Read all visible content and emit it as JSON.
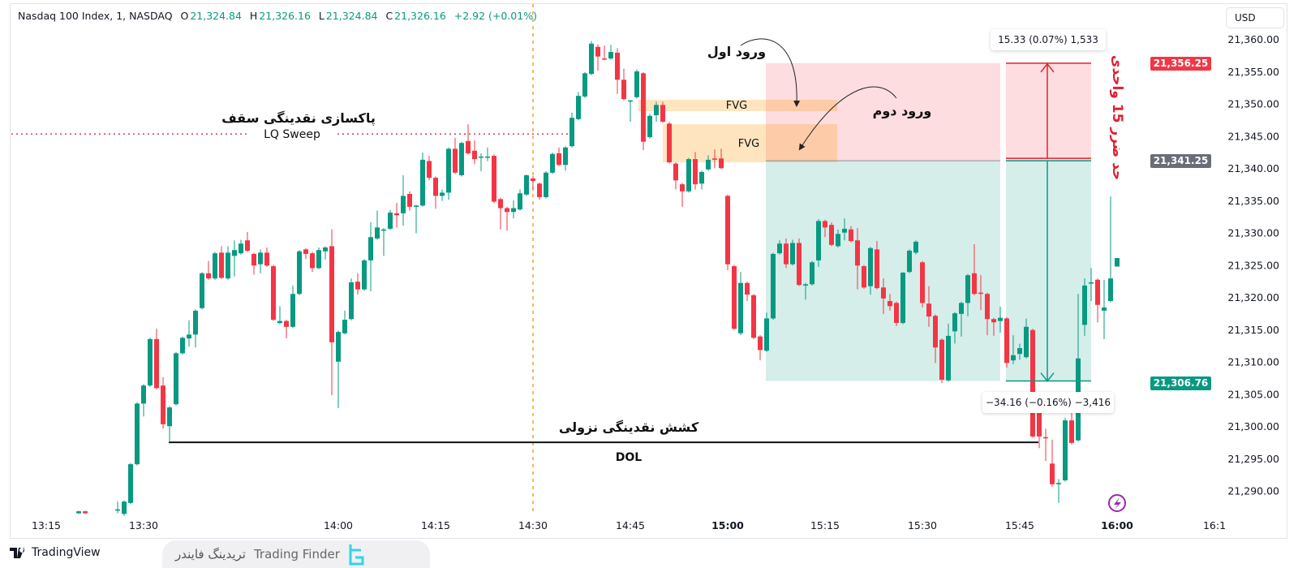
{
  "header": {
    "symbol": "Nasdaq 100 Index, 1, NASDAQ",
    "o_label": "O",
    "o": "21,324.84",
    "h_label": "H",
    "h": "21,326.16",
    "l_label": "L",
    "l": "21,324.84",
    "c_label": "C",
    "c": "21,326.16",
    "change": "+2.92 (+0.01%)"
  },
  "currency": "USD",
  "price_labels": {
    "stop": {
      "text": "21,356.25",
      "value": 21356.25,
      "color": "#f23645"
    },
    "entry": {
      "text": "21,341.25",
      "value": 21341.25,
      "color": "#6a6d78"
    },
    "last": {
      "text": "21,306.76",
      "value": 21306.76,
      "color": "#089981"
    }
  },
  "tooltips": {
    "risk": "15.33 (0.07%) 1,533",
    "reward": "−34.16 (−0.16%) −3,416"
  },
  "annotations": {
    "lq_title": "پاکسازی نقدینگی سقف",
    "lq_label": "LQ Sweep",
    "lq_price": 21345.4,
    "dol_title": "کشش نقدینگی نزولی",
    "dol_label": "DOL",
    "dol_price": 21297.6,
    "fvg1": "FVG",
    "fvg2": "FVG",
    "entry1": "ورود اول",
    "entry2": "ورود دوم",
    "stop_text": "حد ضرر 15 واحدی",
    "zone_stop": 21356.25,
    "zone_entry": 21341.25,
    "zone_target": 21307.1
  },
  "branding": {
    "tradingview": "TradingView",
    "finder_fa": "تریدینگ فایندر",
    "finder_en": "Trading Finder"
  },
  "colors": {
    "up": "#089981",
    "down": "#f23645",
    "accent": "#9c27b0"
  },
  "chart_data": {
    "type": "candlestick",
    "title": "Nasdaq 100 Index, 1, NASDAQ",
    "interval_minutes": 1,
    "start_time": "13:20",
    "ylim": [
      21283,
      21366
    ],
    "y_ticks": [
      21360,
      21355,
      21350,
      21345,
      21340,
      21335,
      21330,
      21325,
      21320,
      21315,
      21310,
      21305,
      21300,
      21295,
      21290
    ],
    "y_tick_labels": [
      "21,360.00",
      "21,355.00",
      "21,350.00",
      "21,345.00",
      "21,340.00",
      "21,335.00",
      "21,330.00",
      "21,325.00",
      "21,320.00",
      "21,315.00",
      "21,310.00",
      "21,305.00",
      "21,300.00",
      "21,295.00",
      "21,290.00"
    ],
    "x_ticks": [
      {
        "label": "13:15",
        "min": 0,
        "bold": false
      },
      {
        "label": "13:30",
        "min": 15,
        "bold": false
      },
      {
        "label": "14:00",
        "min": 45,
        "bold": false
      },
      {
        "label": "14:15",
        "min": 60,
        "bold": false
      },
      {
        "label": "14:30",
        "min": 75,
        "bold": false
      },
      {
        "label": "14:45",
        "min": 90,
        "bold": false
      },
      {
        "label": "15:00",
        "min": 105,
        "bold": true
      },
      {
        "label": "15:15",
        "min": 120,
        "bold": false
      },
      {
        "label": "15:30",
        "min": 135,
        "bold": false
      },
      {
        "label": "15:45",
        "min": 150,
        "bold": false
      },
      {
        "label": "16:00",
        "min": 165,
        "bold": true
      },
      {
        "label": "16:1",
        "min": 180,
        "bold": false
      }
    ],
    "session_line_min": 75,
    "candles_ohlc": [
      [
        21286.6,
        21287.0,
        21286.5,
        21286.9
      ],
      [
        21286.9,
        21287.0,
        21286.5,
        21286.6
      ],
      null,
      null,
      null,
      null,
      [
        21287.0,
        21288.4,
        21286.6,
        21287.2
      ],
      [
        21286.5,
        21288.6,
        21286.2,
        21288.4
      ],
      [
        21288.2,
        21294.4,
        21288.0,
        21294.2
      ],
      [
        21294.2,
        21303.8,
        21294.0,
        21303.6
      ],
      [
        21303.6,
        21306.6,
        21301.6,
        21306.4
      ],
      [
        21306.4,
        21313.8,
        21306.2,
        21313.6
      ],
      [
        21313.6,
        21315.2,
        21305.8,
        21306.0
      ],
      [
        21306.4,
        21307.7,
        21299.7,
        21300.4
      ],
      [
        21300.1,
        21303.2,
        21297.6,
        21303.0
      ],
      [
        21303.5,
        21311.6,
        21303.3,
        21311.4
      ],
      [
        21311.4,
        21314.0,
        21311.2,
        21313.8
      ],
      [
        21313.7,
        21316.5,
        21312.4,
        21314.3
      ],
      [
        21314.3,
        21318.2,
        21312.3,
        21318.0
      ],
      [
        21318.4,
        21324.0,
        21318.2,
        21323.8
      ],
      [
        21323.8,
        21325.7,
        21322.8,
        21323.0
      ],
      [
        21323.0,
        21327.1,
        21322.8,
        21326.9
      ],
      [
        21327.0,
        21328.0,
        21322.9,
        21323.1
      ],
      [
        21323.0,
        21328.0,
        21322.8,
        21327.0
      ],
      [
        21326.5,
        21328.9,
        21323.3,
        21327.4
      ],
      [
        21326.9,
        21329.0,
        21326.7,
        21328.4
      ],
      [
        21328.9,
        21330.2,
        21327.1,
        21327.3
      ],
      [
        21326.8,
        21327.0,
        21323.6,
        21325.0
      ],
      [
        21325.2,
        21327.5,
        21323.8,
        21327.0
      ],
      [
        21327.0,
        21327.8,
        21324.8,
        21325.0
      ],
      [
        21324.9,
        21325.1,
        21316.4,
        21316.6
      ],
      [
        21316.1,
        21318.7,
        21315.9,
        21316.4
      ],
      [
        21316.4,
        21316.6,
        21313.7,
        21315.5
      ],
      [
        21315.5,
        21321.9,
        21315.3,
        21320.6
      ],
      [
        21320.6,
        21327.4,
        21320.4,
        21327.2
      ],
      [
        21327.5,
        21327.7,
        21326.0,
        21326.8
      ],
      [
        21326.9,
        21327.1,
        21324.0,
        21324.6
      ],
      [
        21324.6,
        21327.8,
        21324.4,
        21327.4
      ],
      [
        21327.2,
        21328.0,
        21325.9,
        21327.8
      ],
      [
        21328.0,
        21330.6,
        21304.9,
        21313.1
      ],
      [
        21310.1,
        21314.9,
        21302.9,
        21314.7
      ],
      [
        21314.5,
        21318.0,
        21314.3,
        21316.6
      ],
      [
        21316.7,
        21323.0,
        21316.5,
        21322.4
      ],
      [
        21322.5,
        21323.8,
        21320.5,
        21321.3
      ],
      [
        21321.3,
        21326.0,
        21321.1,
        21325.8
      ],
      [
        21325.8,
        21331.7,
        21321.0,
        21329.4
      ],
      [
        21329.2,
        21333.5,
        21329.0,
        21330.9
      ],
      [
        21330.4,
        21330.8,
        21326.5,
        21330.6
      ],
      [
        21330.7,
        21333.6,
        21330.5,
        21333.2
      ],
      [
        21333.1,
        21334.7,
        21330.9,
        21332.8
      ],
      [
        21333.1,
        21339.0,
        21331.2,
        21335.8
      ],
      [
        21336.1,
        21336.5,
        21333.5,
        21334.1
      ],
      [
        21334.1,
        21334.4,
        21330.0,
        21334.3
      ],
      [
        21334.3,
        21342.5,
        21334.1,
        21341.4
      ],
      [
        21341.2,
        21342.0,
        21338.2,
        21338.6
      ],
      [
        21338.6,
        21338.8,
        21333.8,
        21335.8
      ],
      [
        21335.8,
        21336.8,
        21335.0,
        21336.3
      ],
      [
        21336.3,
        21343.3,
        21335.2,
        21343.1
      ],
      [
        21343.1,
        21344.8,
        21339.2,
        21339.4
      ],
      [
        21339.0,
        21344.2,
        21338.8,
        21344.0
      ],
      [
        21344.3,
        21346.9,
        21342.2,
        21342.4
      ],
      [
        21342.8,
        21344.4,
        21340.7,
        21341.5
      ],
      [
        21341.8,
        21342.4,
        21339.6,
        21341.9
      ],
      [
        21341.8,
        21343.3,
        21341.2,
        21341.9
      ],
      [
        21342.0,
        21342.2,
        21334.7,
        21334.9
      ],
      [
        21335.3,
        21335.5,
        21330.6,
        21333.9
      ],
      [
        21333.9,
        21334.1,
        21330.4,
        21333.3
      ],
      [
        21333.3,
        21335.1,
        21332.3,
        21333.9
      ],
      [
        21333.7,
        21336.8,
        21333.5,
        21336.2
      ],
      [
        21336.0,
        21339.1,
        21335.8,
        21339.0
      ],
      [
        21338.5,
        21338.9,
        21336.6,
        21338.1
      ],
      [
        21337.7,
        21337.9,
        21335.2,
        21335.6
      ],
      [
        21335.6,
        21339.6,
        21335.4,
        21339.4
      ],
      [
        21339.4,
        21342.5,
        21339.2,
        21342.3
      ],
      [
        21342.4,
        21343.3,
        21340.4,
        21340.6
      ],
      [
        21340.6,
        21343.5,
        21339.7,
        21343.3
      ],
      [
        21343.5,
        21348.7,
        21343.3,
        21347.9
      ],
      [
        21347.7,
        21351.9,
        21347.5,
        21351.3
      ],
      [
        21351.2,
        21355.0,
        21351.0,
        21354.8
      ],
      [
        21354.7,
        21359.8,
        21354.5,
        21359.4
      ],
      [
        21358.9,
        21359.3,
        21355.2,
        21357.4
      ],
      [
        21357.1,
        21359.1,
        21356.9,
        21357.0
      ],
      [
        21357.1,
        21359.2,
        21356.9,
        21358.1
      ],
      [
        21358.0,
        21358.7,
        21351.6,
        21353.8
      ],
      [
        21353.8,
        21355.5,
        21350.6,
        21350.8
      ],
      [
        21350.5,
        21350.6,
        21347.3,
        21350.6
      ],
      [
        21351.1,
        21355.4,
        21350.9,
        21355.1
      ],
      [
        21354.8,
        21355.0,
        21342.9,
        21344.2
      ],
      [
        21344.9,
        21348.5,
        21344.7,
        21348.2
      ],
      [
        21348.3,
        21350.4,
        21347.3,
        21349.9
      ],
      [
        21349.9,
        21350.4,
        21347.1,
        21347.3
      ],
      [
        21347.0,
        21347.3,
        21340.8,
        21341.0
      ],
      [
        21340.8,
        21341.0,
        21336.8,
        21338.2
      ],
      [
        21337.6,
        21337.8,
        21334.1,
        21336.5
      ],
      [
        21336.5,
        21341.7,
        21336.3,
        21341.5
      ],
      [
        21341.5,
        21342.6,
        21336.8,
        21337.6
      ],
      [
        21337.7,
        21339.7,
        21336.8,
        21339.5
      ],
      [
        21339.9,
        21342.1,
        21339.7,
        21341.4
      ],
      [
        21341.6,
        21343.0,
        21340.1,
        21341.4
      ],
      [
        21341.6,
        21343.1,
        21339.9,
        21340.1
      ],
      [
        21335.8,
        21336.0,
        21324.3,
        21325.2
      ],
      [
        21324.9,
        21325.1,
        21315.0,
        21315.2
      ],
      [
        21314.5,
        21324.0,
        21314.2,
        21322.3
      ],
      [
        21322.3,
        21322.5,
        21319.5,
        21320.5
      ],
      [
        21320.4,
        21320.6,
        21313.6,
        21313.8
      ],
      [
        21314.0,
        21314.2,
        21310.3,
        21311.9
      ],
      [
        21311.8,
        21317.7,
        21311.6,
        21316.8
      ],
      [
        21316.8,
        21327.0,
        21316.6,
        21326.8
      ],
      [
        21326.9,
        21328.9,
        21326.7,
        21328.4
      ],
      [
        21328.4,
        21329.2,
        21324.6,
        21325.2
      ],
      [
        21325.2,
        21329.0,
        21325.0,
        21328.5
      ],
      [
        21328.5,
        21329.2,
        21321.8,
        21322.0
      ],
      [
        21321.9,
        21322.3,
        21319.7,
        21322.1
      ],
      [
        21322.1,
        21325.7,
        21321.9,
        21325.5
      ],
      [
        21325.8,
        21332.2,
        21324.8,
        21331.9
      ],
      [
        21331.9,
        21332.1,
        21329.4,
        21330.9
      ],
      [
        21331.3,
        21331.7,
        21328.0,
        21328.2
      ],
      [
        21328.0,
        21330.6,
        21327.8,
        21329.9
      ],
      [
        21330.1,
        21332.3,
        21328.9,
        21330.7
      ],
      [
        21330.6,
        21331.1,
        21328.6,
        21328.8
      ],
      [
        21328.9,
        21330.8,
        21321.3,
        21325.0
      ],
      [
        21324.9,
        21325.1,
        21321.4,
        21321.6
      ],
      [
        21321.8,
        21327.9,
        21320.5,
        21327.7
      ],
      [
        21327.5,
        21328.8,
        21321.3,
        21321.5
      ],
      [
        21321.6,
        21323.0,
        21317.5,
        21319.9
      ],
      [
        21319.5,
        21320.6,
        21318.0,
        21318.7
      ],
      [
        21319.2,
        21319.4,
        21315.6,
        21316.1
      ],
      [
        21316.1,
        21324.0,
        21315.9,
        21323.9
      ],
      [
        21324.0,
        21327.5,
        21323.8,
        21327.3
      ],
      [
        21327.0,
        21328.9,
        21326.7,
        21328.7
      ],
      [
        21325.5,
        21325.7,
        21318.5,
        21319.2
      ],
      [
        21319.1,
        21321.8,
        21315.5,
        21317.1
      ],
      [
        21317.2,
        21317.4,
        21309.9,
        21312.3
      ],
      [
        21313.5,
        21313.7,
        21306.8,
        21307.3
      ],
      [
        21307.2,
        21316.0,
        21307.0,
        21314.1
      ],
      [
        21314.8,
        21317.8,
        21312.9,
        21317.6
      ],
      [
        21317.5,
        21319.4,
        21314.0,
        21319.2
      ],
      [
        21319.2,
        21323.7,
        21317.1,
        21323.5
      ],
      [
        21323.8,
        21328.3,
        21320.4,
        21320.6
      ],
      [
        21320.8,
        21323.5,
        21318.1,
        21320.6
      ],
      [
        21320.6,
        21320.8,
        21314.2,
        21316.7
      ],
      [
        21316.7,
        21316.9,
        21314.1,
        21316.2
      ],
      [
        21316.4,
        21318.6,
        21314.6,
        21316.9
      ],
      [
        21316.8,
        21317.0,
        21309.2,
        21309.9
      ],
      [
        21310.3,
        21314.2,
        21309.7,
        21311.1
      ],
      [
        21311.3,
        21312.9,
        21310.4,
        21312.2
      ],
      [
        21310.8,
        21316.8,
        21310.6,
        21315.5
      ],
      [
        21315.0,
        21315.2,
        21298.3,
        21298.5
      ],
      [
        21302.3,
        21302.5,
        21296.7,
        21298.5
      ],
      [
        21298.4,
        21299.7,
        21294.7,
        21298.3
      ],
      [
        21294.3,
        21298.0,
        21290.7,
        21291.1
      ],
      [
        21291.1,
        21291.9,
        21288.2,
        21291.3
      ],
      [
        21291.7,
        21301.4,
        21291.5,
        21301.0
      ],
      [
        21301.0,
        21302.3,
        21297.3,
        21297.5
      ],
      [
        21297.9,
        21320.6,
        21297.7,
        21310.6
      ],
      [
        21315.8,
        21323.0,
        21314.1,
        21321.9
      ],
      [
        21322.2,
        21324.6,
        21319.5,
        21322.4
      ],
      [
        21322.8,
        21323.0,
        21316.2,
        21318.9
      ],
      [
        21318.0,
        21322.8,
        21313.6,
        21318.5
      ],
      [
        21319.5,
        21335.7,
        21319.3,
        21323.0
      ],
      [
        21324.84,
        21326.16,
        21324.84,
        21326.16
      ]
    ]
  }
}
